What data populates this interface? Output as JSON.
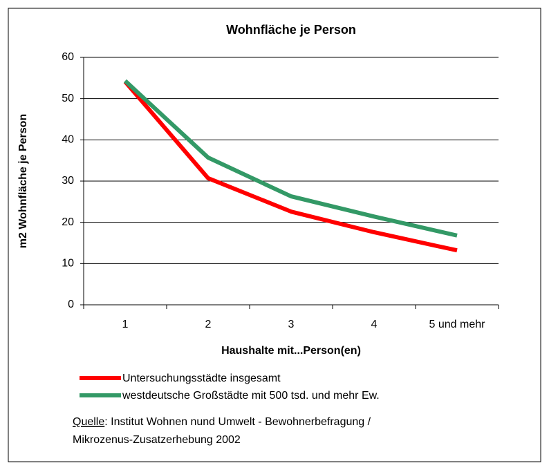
{
  "chart_data": {
    "type": "line",
    "title": "Wohnfläche je Person",
    "xlabel": "Haushalte mit...Person(en)",
    "ylabel": "m2 Wohnfläche je Person",
    "categories": [
      "1",
      "2",
      "3",
      "4",
      "5 und mehr"
    ],
    "series": [
      {
        "name": "Untersuchungsstädte insgesamt",
        "color": "#ff0000",
        "values": [
          54.1,
          30.7,
          22.6,
          17.6,
          13.2
        ]
      },
      {
        "name": "westdeutsche Großstädte mit 500 tsd. und mehr Ew.",
        "color": "#339966",
        "values": [
          54.3,
          35.7,
          26.3,
          21.4,
          16.8
        ]
      }
    ],
    "ylim": [
      0,
      60
    ],
    "yticks": [
      0,
      10,
      20,
      30,
      40,
      50,
      60
    ],
    "grid": true,
    "source_label": "Quelle",
    "source_text": [
      ": Institut Wohnen nund Umwelt - Bewohnerbefragung /",
      "Mikrozenus-Zusatzerhebung 2002"
    ]
  }
}
